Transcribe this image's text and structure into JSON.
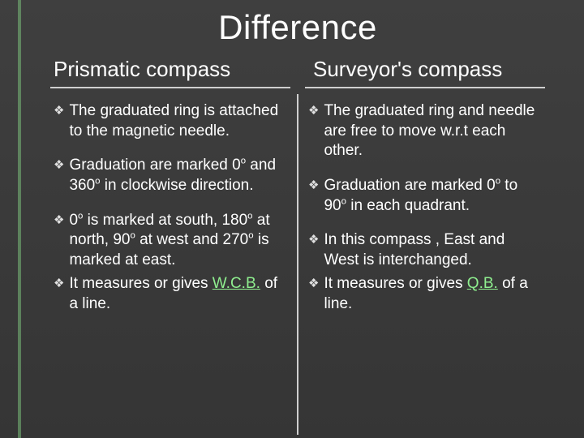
{
  "title": "Difference",
  "columns": {
    "left": {
      "header": "Prismatic compass",
      "bullets": [
        {
          "html": "The graduated ring is attached to the magnetic needle."
        },
        {
          "html": "Graduation are marked 0<sup>o</sup> and 360<sup>o</sup> in clockwise direction."
        },
        {
          "html": "0<sup>o</sup> is marked at south, 180<sup>o</sup> at north, 90<sup>o</sup> at west and 270<sup>o</sup> is marked at east."
        },
        {
          "html": "It measures or gives <span class=\"hl-green\">W.C.B.</span> of a line."
        }
      ]
    },
    "right": {
      "header": "Surveyor's compass",
      "bullets": [
        {
          "html": "The graduated ring and needle are free to move w.r.t each other."
        },
        {
          "html": "Graduation are marked 0<sup>o</sup> to 90<sup>o</sup> in each quadrant."
        },
        {
          "html": "In this compass , East and West is interchanged."
        },
        {
          "html": "It measures or gives <span class=\"hl-green\">Q.B.</span> of a line."
        }
      ]
    }
  },
  "colors": {
    "accent": "#7fc97f",
    "highlight": "#8fef8f",
    "background": "#3a3a3a",
    "text": "#ffffff",
    "rule": "#cfcfcf"
  },
  "bullet_glyph": "❖"
}
